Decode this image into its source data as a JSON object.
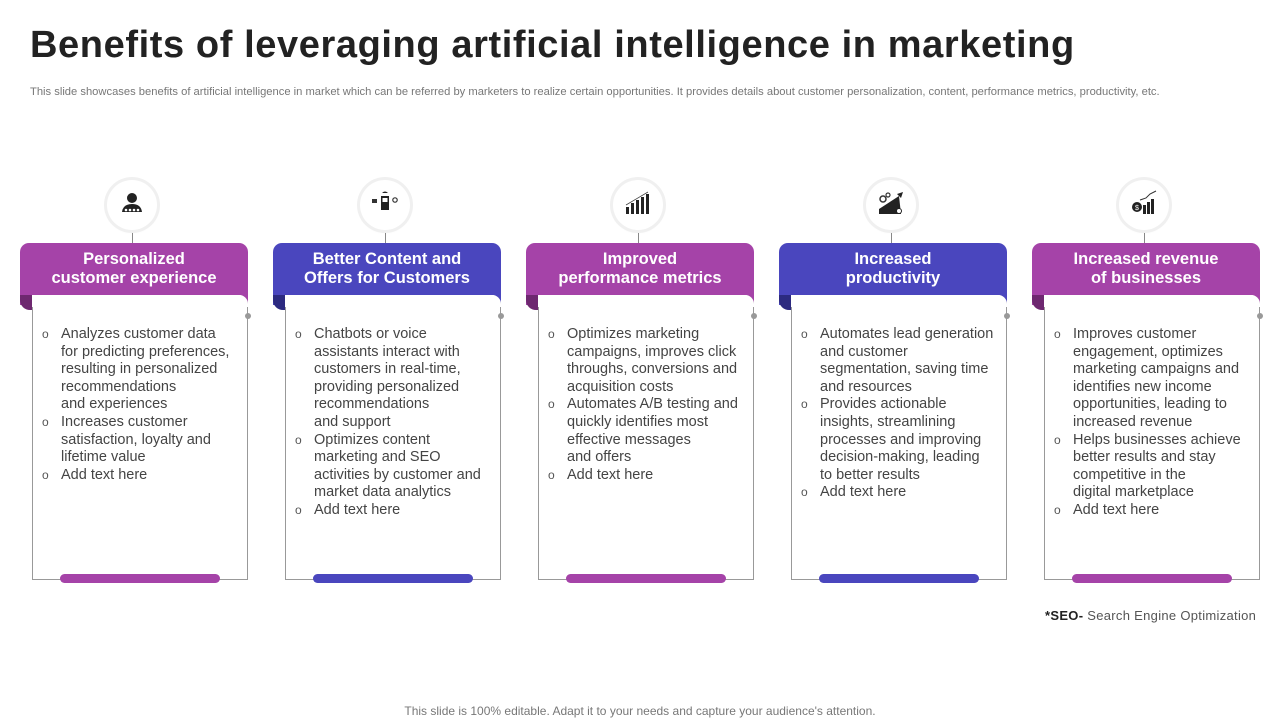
{
  "title": "Benefits of leveraging artificial intelligence in marketing",
  "subtitle": "This slide showcases benefits of artificial intelligence in market which can be referred by marketers to realize certain opportunities. It provides details about customer personalization, content, performance metrics, productivity, etc.",
  "colors": {
    "purple": "#A543A8",
    "purple_dark": "#6E2870",
    "blue": "#4A46BE",
    "blue_dark": "#2C2A80"
  },
  "cards": [
    {
      "icon": "customer-person-icon",
      "color": "purple",
      "title": "Personalized\ncustomer experience",
      "bullets": [
        "Analyzes customer data\nfor predicting preferences,\nresulting in personalized\nrecommendations\nand experiences",
        "Increases customer\nsatisfaction, loyalty and\nlifetime value",
        "Add text here"
      ]
    },
    {
      "icon": "mobile-chatbot-icon",
      "color": "blue",
      "title": "Better Content and\nOffers for Customers",
      "bullets": [
        "Chatbots or voice\nassistants interact with\ncustomers in real-time,\nproviding personalized\nrecommendations\nand support",
        "Optimizes content\nmarketing and SEO\nactivities by customer and\nmarket data analytics",
        "Add text here"
      ]
    },
    {
      "icon": "bar-chart-icon",
      "color": "purple",
      "title": "Improved\nperformance metrics",
      "bullets": [
        "Optimizes marketing\ncampaigns, improves click\nthroughs, conversions and\nacquisition costs",
        "Automates A/B testing and\nquickly identifies most\neffective messages\nand offers",
        "Add text here"
      ]
    },
    {
      "icon": "gears-growth-icon",
      "color": "blue",
      "title": "Increased\nproductivity",
      "bullets": [
        "Automates lead generation\nand customer\nsegmentation, saving time\nand resources",
        "Provides actionable\ninsights, streamlining\nprocesses and improving\ndecision-making, leading\nto better results",
        "Add text here"
      ]
    },
    {
      "icon": "revenue-growth-icon",
      "color": "purple",
      "title": "Increased revenue\nof businesses",
      "bullets": [
        "Improves customer\nengagement, optimizes\nmarketing campaigns and\nidentifies new income\nopportunities, leading to\nincreased revenue",
        "Helps businesses achieve\nbetter results and stay\ncompetitive in the\ndigital marketplace",
        "Add text here"
      ]
    }
  ],
  "footnote": {
    "term": "*SEO-",
    "definition": " Search Engine Optimization"
  },
  "footer": "This slide is 100% editable. Adapt it to your needs and capture your audience's attention."
}
